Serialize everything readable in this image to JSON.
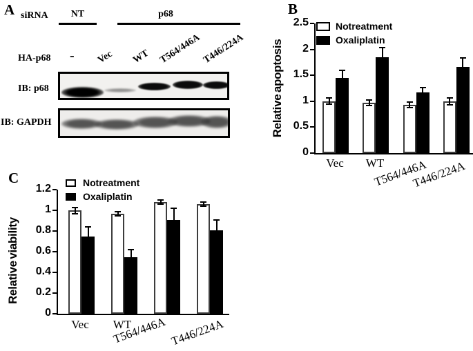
{
  "figure_background": "#ffffff",
  "accent_colors": {
    "bar_open_fill": "#ffffff",
    "bar_solid_fill": "#000000",
    "axis": "#000000"
  },
  "panelA": {
    "label": "A",
    "sirna_row_label": "siRNA",
    "nt_group_label": "NT",
    "p68_group_label": "p68",
    "hap68_row_label": "HA-p68",
    "lane_labels": [
      "-",
      "Vec",
      "WT",
      "T564/446A",
      "T446/224A"
    ],
    "blots": [
      {
        "label": "IB: p68",
        "bands": [
          "strong",
          "faint",
          "dark",
          "dark",
          "dark"
        ]
      },
      {
        "label": "IB: GAPDH",
        "bands": [
          "even",
          "even",
          "even",
          "even",
          "even"
        ]
      }
    ]
  },
  "chart_data": [
    {
      "panel": "B",
      "type": "bar",
      "title": "",
      "xlabel": "",
      "ylabel": "Relative apoptosis",
      "categories": [
        "Vec",
        "WT",
        "T564/446A",
        "T446/224A"
      ],
      "series": [
        {
          "name": "No treatment",
          "fill": "#ffffff",
          "values": [
            1.0,
            0.97,
            0.93,
            1.0
          ],
          "errors": [
            0.06,
            0.05,
            0.05,
            0.07
          ]
        },
        {
          "name": "Oxaliplatin",
          "fill": "#000000",
          "values": [
            1.45,
            1.85,
            1.17,
            1.66
          ],
          "errors": [
            0.14,
            0.18,
            0.09,
            0.17
          ]
        }
      ],
      "ylim": [
        0,
        2.5
      ],
      "yticks": [
        0,
        0.5,
        1,
        1.5,
        2,
        2.5
      ],
      "ytick_labels": [
        "0",
        "0.5",
        "1",
        "1.5",
        "2",
        "2.5"
      ],
      "legend_position": "top-left-inside",
      "grid": false
    },
    {
      "panel": "C",
      "type": "bar",
      "title": "",
      "xlabel": "",
      "ylabel": "Relative viability",
      "categories": [
        "Vec",
        "WT",
        "T564/446A",
        "T446/224A"
      ],
      "series": [
        {
          "name": "No treatment",
          "fill": "#ffffff",
          "values": [
            1.0,
            0.97,
            1.08,
            1.06
          ],
          "errors": [
            0.03,
            0.02,
            0.02,
            0.02
          ]
        },
        {
          "name": "Oxaliplatin",
          "fill": "#000000",
          "values": [
            0.75,
            0.55,
            0.91,
            0.81
          ],
          "errors": [
            0.09,
            0.07,
            0.11,
            0.1
          ]
        }
      ],
      "ylim": [
        0,
        1.2
      ],
      "yticks": [
        0,
        0.2,
        0.4,
        0.6,
        0.8,
        1,
        1.2
      ],
      "ytick_labels": [
        "0",
        "0.2",
        "0.4",
        "0.6",
        "0.8",
        "1",
        "1.2"
      ],
      "legend_position": "top-left-inside",
      "grid": false
    }
  ]
}
